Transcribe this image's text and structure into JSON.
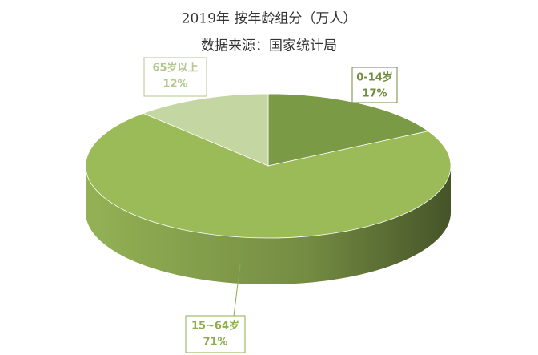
{
  "chart_data": {
    "type": "pie",
    "title": "2019年 按年龄组分（万人）",
    "subtitle": "数据来源：国家统计局",
    "categories": [
      "0-14岁",
      "15~64岁",
      "65岁以上"
    ],
    "values": [
      17,
      71,
      12
    ],
    "value_labels": [
      "17%",
      "71%",
      "12%"
    ],
    "colors": [
      "#7b9a45",
      "#9bbb59",
      "#c4d6a1"
    ]
  }
}
